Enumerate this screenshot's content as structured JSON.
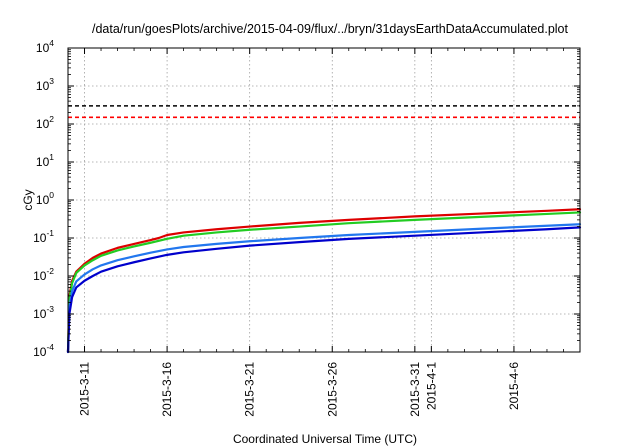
{
  "chart_data": {
    "type": "line",
    "title": "/data/run/goesPlots/archive/2015-04-09/flux/../bryn/31daysEarthDataAccumulated.plot",
    "xlabel": "Coordinated Universal Time (UTC)",
    "ylabel": "cGy",
    "y_scale": "log",
    "ylim": [
      0.0001,
      10000
    ],
    "xlim": [
      "2015-03-10",
      "2015-04-10"
    ],
    "grid": true,
    "y_ticks": [
      {
        "value": 0.0001,
        "base": "10",
        "exp": "-4"
      },
      {
        "value": 0.001,
        "base": "10",
        "exp": "-3"
      },
      {
        "value": 0.01,
        "base": "10",
        "exp": "-2"
      },
      {
        "value": 0.1,
        "base": "10",
        "exp": "-1"
      },
      {
        "value": 1,
        "base": "10",
        "exp": "0"
      },
      {
        "value": 10,
        "base": "10",
        "exp": "1"
      },
      {
        "value": 100,
        "base": "10",
        "exp": "2"
      },
      {
        "value": 1000,
        "base": "10",
        "exp": "3"
      },
      {
        "value": 10000,
        "base": "10",
        "exp": "4"
      }
    ],
    "x_ticks": [
      {
        "date": "2015-03-11",
        "label": "2015-3-11"
      },
      {
        "date": "2015-03-16",
        "label": "2015-3-16"
      },
      {
        "date": "2015-03-21",
        "label": "2015-3-21"
      },
      {
        "date": "2015-03-26",
        "label": "2015-3-26"
      },
      {
        "date": "2015-03-31",
        "label": "2015-3-31"
      },
      {
        "date": "2015-04-01",
        "label": "2015-4-1"
      },
      {
        "date": "2015-04-06",
        "label": "2015-4-6"
      }
    ],
    "x_minor_dates": [
      "2015-03-12",
      "2015-03-13",
      "2015-03-14",
      "2015-03-15",
      "2015-03-17",
      "2015-03-18",
      "2015-03-19",
      "2015-03-20",
      "2015-03-22",
      "2015-03-23",
      "2015-03-24",
      "2015-03-25",
      "2015-03-27",
      "2015-03-28",
      "2015-03-29",
      "2015-03-30",
      "2015-04-02",
      "2015-04-03",
      "2015-04-04",
      "2015-04-05",
      "2015-04-07",
      "2015-04-08",
      "2015-04-09"
    ],
    "thresholds": [
      {
        "value": 300,
        "color": "#000000"
      },
      {
        "value": 150,
        "color": "#ff0000"
      }
    ],
    "series": [
      {
        "color": "#dd0000",
        "x": [
          "2015-03-10T00:00",
          "2015-03-10T02:00",
          "2015-03-10T06:00",
          "2015-03-10T12:00",
          "2015-03-11T00:00",
          "2015-03-11T12:00",
          "2015-03-12T00:00",
          "2015-03-13T00:00",
          "2015-03-14T00:00",
          "2015-03-15T00:00",
          "2015-03-15T12:00",
          "2015-03-16T00:00",
          "2015-03-17T00:00",
          "2015-03-19T00:00",
          "2015-03-21T00:00",
          "2015-03-24T00:00",
          "2015-03-27T00:00",
          "2015-03-31T00:00",
          "2015-04-04T00:00",
          "2015-04-08T00:00",
          "2015-04-10T00:00"
        ],
        "values": [
          0.0001,
          0.003,
          0.0075,
          0.013,
          0.021,
          0.03,
          0.039,
          0.055,
          0.07,
          0.088,
          0.1,
          0.12,
          0.14,
          0.17,
          0.2,
          0.25,
          0.3,
          0.37,
          0.44,
          0.52,
          0.57
        ]
      },
      {
        "color": "#22cc22",
        "x": [
          "2015-03-10T00:00",
          "2015-03-10T02:00",
          "2015-03-10T06:00",
          "2015-03-10T12:00",
          "2015-03-11T00:00",
          "2015-03-11T12:00",
          "2015-03-12T00:00",
          "2015-03-13T00:00",
          "2015-03-14T00:00",
          "2015-03-15T00:00",
          "2015-03-16T00:00",
          "2015-03-17T00:00",
          "2015-03-19T00:00",
          "2015-03-21T00:00",
          "2015-03-24T00:00",
          "2015-03-27T00:00",
          "2015-03-31T00:00",
          "2015-04-04T00:00",
          "2015-04-08T00:00",
          "2015-04-10T00:00"
        ],
        "values": [
          0.0001,
          0.0025,
          0.0065,
          0.012,
          0.019,
          0.026,
          0.034,
          0.047,
          0.06,
          0.075,
          0.095,
          0.115,
          0.14,
          0.165,
          0.2,
          0.245,
          0.3,
          0.36,
          0.43,
          0.47
        ]
      },
      {
        "color": "#2277ee",
        "x": [
          "2015-03-10T00:00",
          "2015-03-10T02:00",
          "2015-03-10T06:00",
          "2015-03-10T12:00",
          "2015-03-11T00:00",
          "2015-03-11T12:00",
          "2015-03-12T00:00",
          "2015-03-13T00:00",
          "2015-03-14T00:00",
          "2015-03-15T00:00",
          "2015-03-16T00:00",
          "2015-03-17T00:00",
          "2015-03-19T00:00",
          "2015-03-21T00:00",
          "2015-03-24T00:00",
          "2015-03-27T00:00",
          "2015-03-31T00:00",
          "2015-04-04T00:00",
          "2015-04-08T00:00",
          "2015-04-10T00:00"
        ],
        "values": [
          0.0001,
          0.0015,
          0.004,
          0.0072,
          0.011,
          0.015,
          0.019,
          0.026,
          0.033,
          0.041,
          0.05,
          0.058,
          0.07,
          0.082,
          0.1,
          0.12,
          0.145,
          0.175,
          0.21,
          0.23
        ]
      },
      {
        "color": "#0000cc",
        "x": [
          "2015-03-10T00:00",
          "2015-03-10T02:00",
          "2015-03-10T06:00",
          "2015-03-10T12:00",
          "2015-03-11T00:00",
          "2015-03-11T12:00",
          "2015-03-12T00:00",
          "2015-03-13T00:00",
          "2015-03-14T00:00",
          "2015-03-15T00:00",
          "2015-03-16T00:00",
          "2015-03-17T00:00",
          "2015-03-19T00:00",
          "2015-03-21T00:00",
          "2015-03-24T00:00",
          "2015-03-27T00:00",
          "2015-03-31T00:00",
          "2015-04-04T00:00",
          "2015-04-08T00:00",
          "2015-04-10T00:00"
        ],
        "values": [
          0.0001,
          0.001,
          0.0028,
          0.005,
          0.0075,
          0.01,
          0.013,
          0.018,
          0.023,
          0.029,
          0.036,
          0.042,
          0.052,
          0.063,
          0.078,
          0.095,
          0.115,
          0.14,
          0.17,
          0.19
        ]
      }
    ]
  }
}
